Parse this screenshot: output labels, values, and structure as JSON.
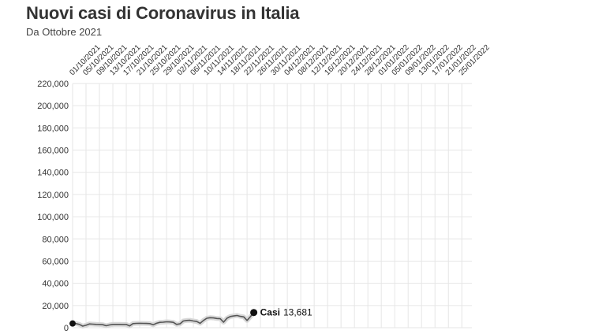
{
  "header": {
    "title": "Nuovi casi di Coronavirus in Italia",
    "subtitle": "Da Ottobre 2021"
  },
  "chart_data": {
    "type": "line",
    "title": "Nuovi casi di Coronavirus in Italia",
    "subtitle": "Da Ottobre 2021",
    "xlabel": "",
    "ylabel": "",
    "ylim": [
      0,
      220000
    ],
    "yticks": [
      0,
      20000,
      40000,
      60000,
      80000,
      100000,
      120000,
      140000,
      160000,
      180000,
      200000,
      220000
    ],
    "ytick_labels": [
      "0",
      "20,000",
      "40,000",
      "60,000",
      "80,000",
      "100,000",
      "120,000",
      "140,000",
      "160,000",
      "180,000",
      "200,000",
      "220,000"
    ],
    "x_start": "01/10/2021",
    "x_end": "28/01/2022",
    "xtick_labels": [
      "01/10/2021",
      "05/10/2021",
      "09/10/2021",
      "13/10/2021",
      "17/10/2021",
      "21/10/2021",
      "25/10/2021",
      "29/10/2021",
      "02/11/2021",
      "06/11/2021",
      "10/11/2021",
      "14/11/2021",
      "18/11/2021",
      "22/11/2021",
      "26/11/2021",
      "30/11/2021",
      "04/12/2021",
      "08/12/2021",
      "12/12/2021",
      "16/12/2021",
      "20/12/2021",
      "24/12/2021",
      "28/12/2021",
      "01/01/2022",
      "05/01/2022",
      "09/01/2022",
      "13/01/2022",
      "17/01/2022",
      "21/01/2022",
      "25/01/2022"
    ],
    "grid": true,
    "colors": {
      "line": "#555555",
      "band": "#d9d9d9",
      "grid": "#e6e6e6",
      "marker": "#111111"
    },
    "series": [
      {
        "name": "Casi",
        "x": [
          "01/10/2021",
          "02/10/2021",
          "03/10/2021",
          "04/10/2021",
          "05/10/2021",
          "06/10/2021",
          "07/10/2021",
          "08/10/2021",
          "09/10/2021",
          "10/10/2021",
          "11/10/2021",
          "12/10/2021",
          "13/10/2021",
          "14/10/2021",
          "15/10/2021",
          "16/10/2021",
          "17/10/2021",
          "18/10/2021",
          "19/10/2021",
          "20/10/2021",
          "21/10/2021",
          "22/10/2021",
          "23/10/2021",
          "24/10/2021",
          "25/10/2021",
          "26/10/2021",
          "27/10/2021",
          "28/10/2021",
          "29/10/2021",
          "30/10/2021",
          "31/10/2021",
          "01/11/2021",
          "02/11/2021",
          "03/11/2021",
          "04/11/2021",
          "05/11/2021",
          "06/11/2021",
          "07/11/2021",
          "08/11/2021",
          "09/11/2021",
          "10/11/2021",
          "11/11/2021",
          "12/11/2021",
          "13/11/2021",
          "14/11/2021",
          "15/11/2021",
          "16/11/2021",
          "17/11/2021",
          "18/11/2021",
          "19/11/2021",
          "20/11/2021",
          "21/11/2021",
          "22/11/2021",
          "23/11/2021",
          "24/11/2021"
        ],
        "values": [
          3800,
          3700,
          3000,
          1400,
          2200,
          3400,
          3200,
          3000,
          2900,
          2700,
          1800,
          2500,
          3000,
          3000,
          3000,
          2900,
          2900,
          1600,
          3700,
          3900,
          4000,
          3900,
          3800,
          3700,
          2600,
          4000,
          4800,
          5000,
          5300,
          5200,
          4800,
          3000,
          3500,
          6000,
          6500,
          6700,
          6000,
          5600,
          4000,
          6500,
          8500,
          9000,
          8800,
          8300,
          8100,
          5000,
          8500,
          10100,
          10600,
          11000,
          10200,
          9700,
          6500,
          10000,
          13681
        ],
        "end_label": "Casi",
        "end_value_label": "13,681"
      }
    ]
  }
}
